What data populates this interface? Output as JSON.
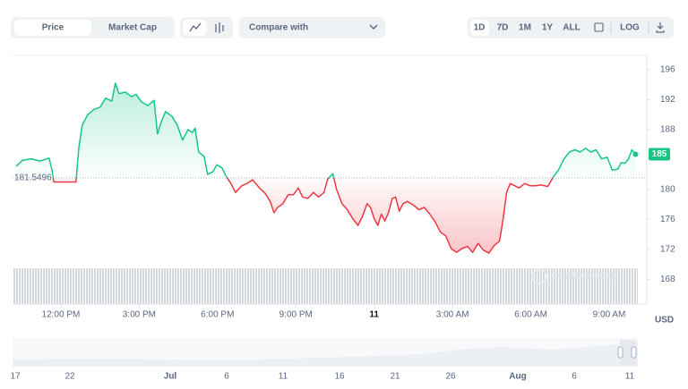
{
  "toolbar": {
    "tabs": [
      "Price",
      "Market Cap"
    ],
    "compare": "Compare with",
    "ranges": [
      "1D",
      "7D",
      "1M",
      "1Y",
      "ALL"
    ],
    "log": "LOG"
  },
  "chart_data": {
    "type": "line",
    "x": [
      10.29,
      10.53,
      10.87,
      11.21,
      11.55,
      11.66,
      11.73,
      12.58,
      12.69,
      12.82,
      13.03,
      13.27,
      13.51,
      13.71,
      13.95,
      14.09,
      14.23,
      14.47,
      14.71,
      14.88,
      15.09,
      15.33,
      15.57,
      15.7,
      15.84,
      16.01,
      16.25,
      16.46,
      16.66,
      16.87,
      17.04,
      17.14,
      17.28,
      17.49,
      17.62,
      17.83,
      17.97,
      18.17,
      18.31,
      18.51,
      18.69,
      18.93,
      19.13,
      19.34,
      19.61,
      19.82,
      20.02,
      20.16,
      20.3,
      20.5,
      20.71,
      20.91,
      21.09,
      21.26,
      21.46,
      21.67,
      21.87,
      22.08,
      22.22,
      22.42,
      22.56,
      22.77,
      22.97,
      23.18,
      23.38,
      23.55,
      23.73,
      23.86,
      24.0,
      24.14,
      24.27,
      24.41,
      24.55,
      24.69,
      24.82,
      24.96,
      25.1,
      25.27,
      25.51,
      25.71,
      25.92,
      26.13,
      26.33,
      26.54,
      26.74,
      26.95,
      27.15,
      27.36,
      27.57,
      27.77,
      27.98,
      28.18,
      28.39,
      28.59,
      28.8,
      28.94,
      29.07,
      29.21,
      29.38,
      29.55,
      29.76,
      29.97,
      30.17,
      30.38,
      30.65,
      30.86,
      31.06,
      31.27,
      31.48,
      31.68,
      31.89,
      32.09,
      32.3,
      32.5,
      32.71,
      32.92,
      33.12,
      33.33,
      33.46,
      33.6,
      33.74,
      33.87,
      34.01
    ],
    "series": [
      {
        "name": "Price",
        "color_up": "#16c784",
        "color_down": "#ea3943",
        "values": [
          183.1,
          183.9,
          184.1,
          183.8,
          184.2,
          182.6,
          181.0,
          181.0,
          185.6,
          188.6,
          190.0,
          190.7,
          191.0,
          192.2,
          191.8,
          194.2,
          192.8,
          193.0,
          192.4,
          192.7,
          191.7,
          191.2,
          191.9,
          187.4,
          189.0,
          190.4,
          189.8,
          188.6,
          186.6,
          188.0,
          187.6,
          188.2,
          185.0,
          184.4,
          182.0,
          182.4,
          183.3,
          182.9,
          181.9,
          180.8,
          179.6,
          180.5,
          180.8,
          181.3,
          180.2,
          179.5,
          178.4,
          176.9,
          177.6,
          178.1,
          179.3,
          179.3,
          180.2,
          179.0,
          178.8,
          179.6,
          179.0,
          179.6,
          181.4,
          182.1,
          180.0,
          178.1,
          177.3,
          176.1,
          175.2,
          176.4,
          178.1,
          177.6,
          176.1,
          175.2,
          176.7,
          175.8,
          176.9,
          178.8,
          179.0,
          177.1,
          178.1,
          178.4,
          177.9,
          177.3,
          177.6,
          176.7,
          175.7,
          174.3,
          173.8,
          172.1,
          171.6,
          172.1,
          172.4,
          171.6,
          172.8,
          171.9,
          171.5,
          172.5,
          173.1,
          176.1,
          179.6,
          180.8,
          180.5,
          180.2,
          180.8,
          180.5,
          180.5,
          180.6,
          180.4,
          181.7,
          182.6,
          184.1,
          185.0,
          185.3,
          185.0,
          185.5,
          185.0,
          185.3,
          184.1,
          184.3,
          182.6,
          182.7,
          183.6,
          183.5,
          184.1,
          185.3,
          184.7
        ]
      }
    ],
    "reference_line": 181.5496,
    "current_price": {
      "value": 184.7,
      "label": "185"
    },
    "xlim": [
      10.15,
      34.44
    ],
    "xticks": [
      {
        "value": 12,
        "label": "12:00 PM"
      },
      {
        "value": 15,
        "label": "3:00 PM"
      },
      {
        "value": 18,
        "label": "6:00 PM"
      },
      {
        "value": 21,
        "label": "9:00 PM"
      },
      {
        "value": 24,
        "label": "11"
      },
      {
        "value": 27,
        "label": "3:00 AM"
      },
      {
        "value": 30,
        "label": "6:00 AM"
      },
      {
        "value": 33,
        "label": "9:00 AM"
      }
    ],
    "ylim": [
      164.7,
      197.9
    ],
    "yticks": [
      168,
      172,
      176,
      180,
      188,
      192,
      196
    ],
    "y_label": "USD",
    "watermark": "CoinMarketCap"
  },
  "navigator": {
    "labels": [
      "17",
      "22",
      "Jul",
      "6",
      "11",
      "16",
      "21",
      "26",
      "Aug",
      "6",
      "11"
    ]
  }
}
